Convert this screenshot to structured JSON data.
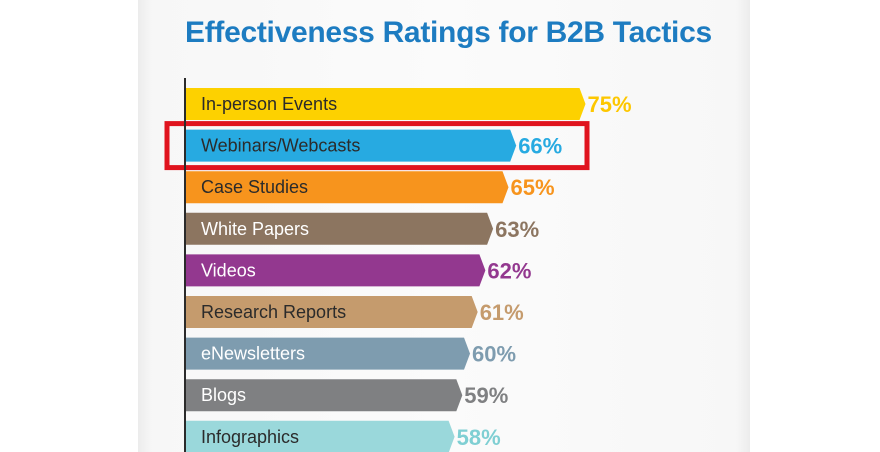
{
  "chart_data": {
    "type": "bar",
    "orientation": "horizontal",
    "title": "Effectiveness Ratings for B2B Tactics",
    "categories": [
      "In-person Events",
      "Webinars/Webcasts",
      "Case Studies",
      "White Papers",
      "Videos",
      "Research Reports",
      "eNewsletters",
      "Blogs",
      "Infographics"
    ],
    "values": [
      75,
      66,
      65,
      63,
      62,
      61,
      60,
      59,
      58
    ],
    "value_labels": [
      "75%",
      "66%",
      "65%",
      "63%",
      "62%",
      "61%",
      "60%",
      "59%",
      "58%"
    ],
    "colors": [
      "#fdd100",
      "#27aae1",
      "#f7941d",
      "#8c7560",
      "#93388f",
      "#c59b6d",
      "#7e9caf",
      "#7f8082",
      "#9ad8db"
    ],
    "label_text_colors": [
      "#2b2b2b",
      "#2b2b2b",
      "#2b2b2b",
      "#ffffff",
      "#ffffff",
      "#2b2b2b",
      "#ffffff",
      "#ffffff",
      "#2b2b2b"
    ],
    "value_text_colors": [
      "#fdc700",
      "#27aae1",
      "#f7941d",
      "#8c7560",
      "#93388f",
      "#c59b6d",
      "#7e9caf",
      "#7f8082",
      "#7fcfd3"
    ],
    "highlighted_category": "Webinars/Webcasts",
    "highlight_color": "#e0141e",
    "unit": "%",
    "grid": false,
    "legend": "none"
  }
}
